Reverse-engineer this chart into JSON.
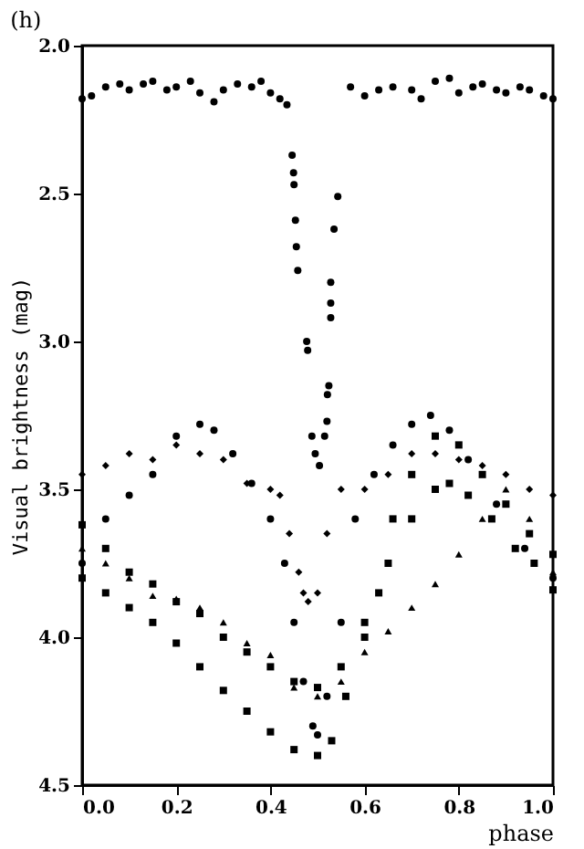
{
  "chart_data": {
    "type": "scatter",
    "title": "(h)",
    "xlabel": "phase",
    "ylabel": "Visual brightness (mag)",
    "xlim": [
      0,
      1
    ],
    "xticks": [
      {
        "value": 0,
        "label": "0.0"
      },
      0.2,
      0.4,
      0.6,
      0.8,
      {
        "value": 1,
        "label": "1.0"
      }
    ],
    "ylim": [
      4.5,
      2.0
    ],
    "yticks": [
      {
        "value": 2,
        "label": "2.0"
      },
      2.5,
      {
        "value": 3,
        "label": "3.0"
      },
      3.5,
      {
        "value": 4,
        "label": "4.0"
      },
      4.5
    ],
    "grid": false,
    "series": [
      {
        "color": "#000000",
        "marker": "circle",
        "x": [
          0.0,
          0.02,
          0.05,
          0.08,
          0.1,
          0.13,
          0.15,
          0.18,
          0.2,
          0.23,
          0.25,
          0.28,
          0.3,
          0.33,
          0.36,
          0.38,
          0.4,
          0.42,
          0.435,
          0.446,
          0.449,
          0.45,
          0.453,
          0.455,
          0.458,
          0.477,
          0.479,
          0.488,
          0.495,
          0.504,
          0.515,
          0.52,
          0.521,
          0.524,
          0.528,
          0.528,
          0.528,
          0.535,
          0.543,
          0.57,
          0.6,
          0.63,
          0.66,
          0.7,
          0.72,
          0.75,
          0.78,
          0.8,
          0.83,
          0.85,
          0.88,
          0.9,
          0.93,
          0.95,
          0.98,
          1.0
        ],
        "values": [
          2.18,
          2.17,
          2.14,
          2.13,
          2.15,
          2.13,
          2.12,
          2.15,
          2.14,
          2.12,
          2.16,
          2.19,
          2.15,
          2.13,
          2.14,
          2.12,
          2.16,
          2.18,
          2.2,
          2.37,
          2.43,
          2.47,
          2.59,
          2.68,
          2.76,
          3.0,
          3.03,
          3.32,
          3.38,
          3.42,
          3.32,
          3.27,
          3.18,
          3.15,
          2.92,
          2.87,
          2.8,
          2.62,
          2.51,
          2.14,
          2.17,
          2.15,
          2.14,
          2.15,
          2.18,
          2.12,
          2.11,
          2.16,
          2.14,
          2.13,
          2.15,
          2.16,
          2.14,
          2.15,
          2.17,
          2.18
        ]
      },
      {
        "color": "#000000",
        "marker": "diamond",
        "x": [
          0,
          0.05,
          0.1,
          0.15,
          0.2,
          0.25,
          0.3,
          0.35,
          0.4,
          0.42,
          0.44,
          0.46,
          0.47,
          0.48,
          0.5,
          0.52,
          0.55,
          0.6,
          0.65,
          0.7,
          0.75,
          0.8,
          0.85,
          0.9,
          0.95,
          1.0
        ],
        "values": [
          3.45,
          3.42,
          3.38,
          3.4,
          3.35,
          3.38,
          3.4,
          3.48,
          3.5,
          3.52,
          3.65,
          3.78,
          3.85,
          3.88,
          3.85,
          3.65,
          3.5,
          3.5,
          3.45,
          3.38,
          3.38,
          3.4,
          3.42,
          3.45,
          3.5,
          3.52
        ]
      },
      {
        "color": "#000000",
        "marker": "circle",
        "x": [
          0,
          0.05,
          0.1,
          0.15,
          0.2,
          0.25,
          0.28,
          0.32,
          0.36,
          0.4,
          0.43,
          0.45,
          0.47,
          0.49,
          0.5,
          0.52,
          0.55,
          0.58,
          0.62,
          0.66,
          0.7,
          0.74,
          0.78,
          0.82,
          0.88,
          0.94,
          1.0
        ],
        "values": [
          3.75,
          3.6,
          3.52,
          3.45,
          3.32,
          3.28,
          3.3,
          3.38,
          3.48,
          3.6,
          3.75,
          3.95,
          4.15,
          4.3,
          4.33,
          4.2,
          3.95,
          3.6,
          3.45,
          3.35,
          3.28,
          3.25,
          3.3,
          3.4,
          3.55,
          3.7,
          3.8
        ]
      },
      {
        "color": "#000000",
        "marker": "square",
        "x": [
          0,
          0.05,
          0.1,
          0.15,
          0.2,
          0.25,
          0.3,
          0.35,
          0.4,
          0.45,
          0.5,
          0.55,
          0.6,
          0.63,
          0.66,
          0.7,
          0.75,
          0.8,
          0.85,
          0.9,
          0.95,
          1.0
        ],
        "values": [
          3.62,
          3.7,
          3.78,
          3.82,
          3.88,
          3.92,
          4.0,
          4.05,
          4.1,
          4.15,
          4.17,
          4.1,
          3.95,
          3.85,
          3.6,
          3.45,
          3.32,
          3.35,
          3.45,
          3.55,
          3.65,
          3.72
        ]
      },
      {
        "color": "#000000",
        "marker": "triangle",
        "x": [
          0,
          0.05,
          0.1,
          0.15,
          0.2,
          0.25,
          0.3,
          0.35,
          0.4,
          0.45,
          0.5,
          0.55,
          0.6,
          0.65,
          0.7,
          0.75,
          0.8,
          0.85,
          0.9,
          0.95,
          1.0
        ],
        "values": [
          3.7,
          3.75,
          3.8,
          3.86,
          3.87,
          3.9,
          3.95,
          4.02,
          4.06,
          4.17,
          4.2,
          4.15,
          4.05,
          3.98,
          3.9,
          3.82,
          3.72,
          3.6,
          3.5,
          3.6,
          3.78
        ]
      },
      {
        "color": "#000000",
        "marker": "square",
        "x": [
          0,
          0.05,
          0.1,
          0.15,
          0.2,
          0.25,
          0.3,
          0.35,
          0.4,
          0.45,
          0.5,
          0.53,
          0.56,
          0.6,
          0.65,
          0.7,
          0.75,
          0.78,
          0.82,
          0.87,
          0.92,
          0.96,
          1.0
        ],
        "values": [
          3.8,
          3.85,
          3.9,
          3.95,
          4.02,
          4.1,
          4.18,
          4.25,
          4.32,
          4.38,
          4.4,
          4.35,
          4.2,
          4.0,
          3.75,
          3.6,
          3.5,
          3.48,
          3.52,
          3.6,
          3.7,
          3.75,
          3.84
        ]
      }
    ]
  }
}
